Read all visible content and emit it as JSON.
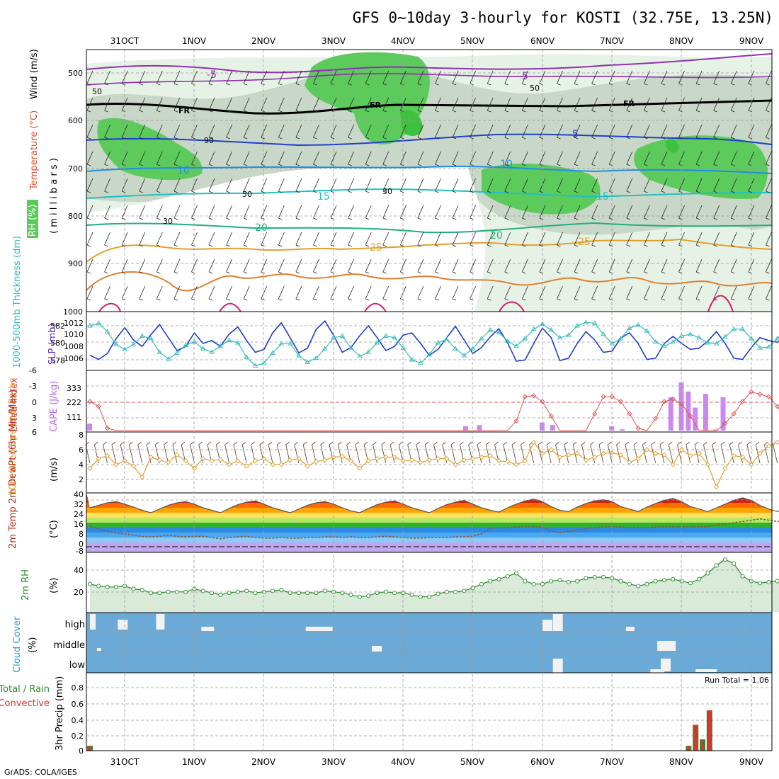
{
  "title": "GFS 0~10day 3-hourly for KOSTI (32.75E, 13.25N)",
  "credit": "GrADS: COLA/IGES",
  "dates": [
    "31OCT",
    "1NOV",
    "2NOV",
    "3NOV",
    "4NOV",
    "5NOV",
    "6NOV",
    "7NOV",
    "8NOV",
    "9NOV"
  ],
  "colors": {
    "rh_light": "#e6f2e6",
    "rh_mid": "#c8d7c8",
    "rh_green": "#5ccb5c",
    "cyan": "#33bbbb",
    "blue": "#1f3fcc",
    "red": "#e05050",
    "orange": "#e0a030",
    "purple": "#cc88ee",
    "cloud": "#6ba9d6"
  },
  "panels": {
    "upper": {
      "ylabel_parts": [
        "RH (%)",
        "Temperature (°C)",
        "Wind (m/s)"
      ],
      "ylabel2": "( m i l l i b a r s )",
      "yticks": [
        "500",
        "600",
        "700",
        "800",
        "900",
        "1000"
      ],
      "contour_labels": [
        "5",
        "-5",
        "FR",
        "FR",
        "FR",
        "-5",
        "5",
        "10",
        "10",
        "15",
        "15",
        "20",
        "20",
        "25",
        "25",
        "30",
        "30",
        "50",
        "50",
        "50",
        "90"
      ]
    },
    "slp": {
      "ylabel_left": "1000-500mb Thickness (dm)",
      "ylabel_right": "SLP (mb)",
      "left_ticks": [
        "582",
        "580",
        "578"
      ],
      "right_ticks": [
        "1012",
        "1010",
        "1008",
        "1006"
      ]
    },
    "cape": {
      "ylabel_left": "Lifted Index",
      "ylabel_right": "CAPE (J/kg)",
      "left_ticks": [
        "-6",
        "-3",
        "0",
        "3",
        "6"
      ],
      "right_ticks": [
        "333",
        "222",
        "111"
      ]
    },
    "wind10": {
      "ylabel": "10m Wind Speed & Barbs",
      "unit": "(m/s)",
      "ticks": [
        "8",
        "6",
        "4",
        "2"
      ]
    },
    "temp2m": {
      "ylabel": "2m Temp 2m DewPt (6hr Min/Max)",
      "unit": "(°C)",
      "ticks": [
        "40",
        "32",
        "24",
        "16",
        "8",
        "0",
        "-8"
      ]
    },
    "rh2m": {
      "ylabel": "2m RH",
      "unit": "(%)",
      "ticks": [
        "40",
        "20"
      ]
    },
    "cloud": {
      "ylabel": "Cloud Cover",
      "unit": "(%)",
      "levels": [
        "high",
        "middle",
        "low"
      ]
    },
    "precip": {
      "ylabel_left": "Total / Rain",
      "ylabel_left2": "Convective",
      "ylabel": "3hr Precip (mm)",
      "ticks": [
        "0.8",
        "0.6",
        "0.4",
        "0.2",
        "0"
      ],
      "run_total": "Run Total = 1.06"
    }
  },
  "chart_data": [
    {
      "type": "line",
      "name": "slp",
      "title": "",
      "x_unit": "days from 30OCT12Z (3-hourly)",
      "series": [
        {
          "name": "SLP (mb)",
          "values": [
            1007.0,
            1006.3,
            1007.3,
            1009.8,
            1011.7,
            1009.6,
            1008.5,
            1010.5,
            1012.2,
            1010.0,
            1007.8,
            1008.5,
            1010.8,
            1009.0,
            1009.5,
            1008.5,
            1010.6,
            1011.8,
            1009.5,
            1007.5,
            1008.0,
            1010.8,
            1012.5,
            1010.0,
            1007.4,
            1008.2,
            1011.4,
            1012.8,
            1010.4,
            1007.5,
            1008.3,
            1010.3,
            1012.0,
            1010.0,
            1007.8,
            1008.5,
            1010.4,
            1010.8,
            1009.0,
            1007.0,
            1008.0,
            1010.0,
            1011.9,
            1009.6,
            1007.3,
            1008.3,
            1010.1,
            1011.5,
            1009.1,
            1006.0,
            1006.2,
            1009.0,
            1011.6,
            1010.0,
            1006.1,
            1006.5,
            1009.0,
            1011.0,
            1009.6,
            1007.5,
            1007.7,
            1009.9,
            1010.8,
            1009.0,
            1006.3,
            1006.5,
            1009.0,
            1010.2,
            1009.0,
            1008.0,
            1008.2,
            1009.4,
            1011.0,
            1009.0,
            1006.5,
            1006.3,
            1008.3,
            1010.0,
            1009.5,
            1009.2,
            1010.2,
            1011.2
          ]
        },
        {
          "name": "Thickness (dm)",
          "values": [
            582.0,
            582.3,
            581.3,
            579.8,
            579.2,
            579.8,
            580.8,
            580.5,
            578.9,
            578.1,
            578.8,
            579.7,
            580.1,
            579.3,
            578.9,
            579.6,
            580.3,
            580.0,
            578.3,
            577.3,
            577.6,
            578.8,
            579.9,
            579.9,
            578.5,
            577.7,
            578.2,
            579.3,
            580.6,
            580.8,
            579.4,
            578.4,
            578.9,
            580.0,
            580.8,
            580.6,
            579.4,
            578.0,
            577.6,
            578.6,
            580.0,
            580.4,
            579.3,
            578.5,
            579.3,
            580.5,
            581.5,
            581.2,
            580.2,
            579.6,
            580.5,
            581.6,
            582.2,
            581.5,
            580.6,
            580.9,
            582.0,
            582.4,
            582.3,
            581.0,
            579.9,
            580.5,
            581.7,
            582.1,
            581.4,
            580.1,
            579.6,
            580.1,
            580.8,
            581.0,
            580.6,
            580.0,
            579.9,
            580.7,
            581.6,
            581.6,
            580.5,
            579.4,
            579.5,
            580.5,
            581.5,
            582.8
          ]
        }
      ]
    },
    {
      "type": "bar",
      "name": "cape",
      "ylabel": "CAPE (J/kg)",
      "x": [
        0.0,
        5.4,
        5.6,
        6.5,
        6.65,
        7.5,
        7.65,
        8.35,
        8.5,
        8.6,
        8.7,
        8.85,
        9.0,
        9.1
      ],
      "values": [
        60,
        38,
        48,
        70,
        48,
        38,
        12,
        290,
        420,
        340,
        200,
        320,
        10,
        290
      ]
    },
    {
      "type": "line",
      "name": "lifted_index",
      "ylabel": "Lifted Index",
      "ylim": [
        6,
        -6
      ],
      "values": [
        0.0,
        1.0,
        5.5,
        6.0,
        6.0,
        6.0,
        6.0,
        6.0,
        6.0,
        6.0,
        6.0,
        6.0,
        6.0,
        6.0,
        6.0,
        6.0,
        6.0,
        6.0,
        6.0,
        6.0,
        6.0,
        6.0,
        6.0,
        6.0,
        6.0,
        6.0,
        6.0,
        6.0,
        6.0,
        6.0,
        6.0,
        6.0,
        6.0,
        6.0,
        6.0,
        6.0,
        6.0,
        6.0,
        6.0,
        6.0,
        6.0,
        6.0,
        6.0,
        6.0,
        6.0,
        6.0,
        6.0,
        6.0,
        6.0,
        4.0,
        -1.0,
        -1.2,
        0.0,
        3.0,
        6.0,
        6.0,
        6.0,
        6.0,
        2.5,
        -1.0,
        -1.0,
        0.0,
        2.5,
        5.5,
        6.0,
        3.5,
        0.0,
        -0.5,
        0.5,
        3.0,
        6.0,
        6.0,
        6.0,
        4.5,
        2.5,
        0.0,
        -2.0,
        -1.5,
        -1.0,
        1.0,
        3.5,
        4.0
      ]
    },
    {
      "type": "line",
      "name": "wind10m",
      "ylabel": "(m/s)",
      "ylim": [
        0,
        8
      ],
      "values": [
        3.5,
        4.8,
        5.2,
        4.0,
        4.5,
        3.8,
        2.3,
        5.0,
        4.6,
        4.3,
        5.3,
        4.5,
        3.5,
        4.8,
        4.5,
        4.7,
        4.0,
        4.5,
        3.8,
        4.5,
        4.8,
        4.0,
        4.0,
        4.6,
        4.8,
        3.8,
        4.4,
        4.6,
        5.0,
        5.1,
        4.5,
        3.5,
        4.5,
        4.8,
        5.0,
        5.0,
        4.5,
        4.6,
        4.3,
        4.6,
        4.8,
        4.8,
        4.0,
        4.6,
        4.8,
        5.0,
        5.2,
        4.5,
        4.4,
        4.0,
        4.5,
        7.0,
        5.5,
        6.0,
        5.0,
        5.3,
        5.5,
        4.6,
        5.0,
        5.5,
        5.6,
        5.3,
        4.3,
        4.8,
        6.0,
        5.5,
        5.3,
        4.0,
        6.0,
        5.2,
        5.5,
        4.0,
        1.0,
        3.5,
        5.2,
        5.0,
        4.0,
        5.5,
        6.5,
        7.0,
        6.0,
        6.5
      ]
    },
    {
      "type": "line",
      "name": "temp2m",
      "ylabel": "(°C)",
      "ylim": [
        -8,
        40
      ],
      "series": [
        {
          "name": "2m Temp",
          "values": [
            28.0,
            30.0,
            32.0,
            33.0,
            31.0,
            28.5,
            26.0,
            24.0,
            27.0,
            30.0,
            32.0,
            33.0,
            31.0,
            28.0,
            26.0,
            24.0,
            27.5,
            30.5,
            32.5,
            33.5,
            31.0,
            28.0,
            26.0,
            24.0,
            27.0,
            30.0,
            32.0,
            33.0,
            31.0,
            28.0,
            25.5,
            24.0,
            27.5,
            30.5,
            32.5,
            33.5,
            31.0,
            28.0,
            26.0,
            24.0,
            27.5,
            30.5,
            32.5,
            34.0,
            31.0,
            28.0,
            26.0,
            24.5,
            28.0,
            31.0,
            33.5,
            35.0,
            33.0,
            29.0,
            26.0,
            25.0,
            28.5,
            31.5,
            33.5,
            34.5,
            33.0,
            29.0,
            27.0,
            25.0,
            28.5,
            31.5,
            34.0,
            35.5,
            33.0,
            29.0,
            27.0,
            25.0,
            28.0,
            31.0,
            34.0,
            36.0,
            34.0,
            30.0,
            27.0,
            25.0,
            28.0,
            29.0
          ]
        },
        {
          "name": "2m DewPt",
          "values": [
            13.0,
            11.0,
            9.0,
            7.5,
            7.0,
            6.0,
            5.0,
            4.5,
            5.0,
            6.0,
            5.0,
            4.5,
            5.0,
            5.0,
            4.0,
            3.0,
            4.0,
            4.5,
            5.0,
            4.0,
            3.5,
            3.5,
            4.0,
            3.5,
            3.5,
            4.0,
            4.0,
            4.5,
            4.5,
            4.0,
            4.5,
            4.0,
            4.0,
            4.5,
            5.0,
            4.5,
            4.0,
            3.5,
            3.5,
            4.0,
            4.0,
            4.0,
            4.5,
            4.5,
            5.0,
            7.0,
            11.5,
            12.0,
            12.0,
            12.5,
            12.5,
            12.5,
            12.5,
            9.0,
            8.0,
            9.0,
            10.0,
            11.0,
            12.0,
            12.5,
            12.5,
            12.5,
            12.0,
            12.0,
            12.0,
            12.5,
            12.5,
            12.5,
            12.5,
            12.5,
            12.5,
            13.0,
            14.0,
            15.0,
            16.0,
            17.0,
            18.0,
            19.0,
            18.0,
            17.0,
            17.0,
            16.5
          ]
        }
      ]
    },
    {
      "type": "area",
      "name": "rh2m",
      "ylabel": "(%)",
      "ylim": [
        0,
        55
      ],
      "values": [
        27,
        25,
        24,
        24,
        25,
        22,
        21,
        18,
        18,
        19,
        19,
        19,
        22,
        20,
        18,
        16,
        18,
        19,
        20,
        18,
        19,
        20,
        21,
        18,
        18,
        18,
        18,
        20,
        19,
        18,
        16,
        14,
        15,
        18,
        19,
        18,
        18,
        16,
        14,
        14,
        17,
        19,
        19,
        20,
        23,
        27,
        30,
        32,
        35,
        38,
        30,
        27,
        27,
        30,
        31,
        29,
        30,
        33,
        34,
        34,
        33,
        30,
        27,
        25,
        27,
        30,
        31,
        32,
        30,
        28,
        32,
        38,
        46,
        52,
        48,
        35,
        30,
        28,
        29,
        30,
        31,
        32
      ]
    },
    {
      "type": "bar",
      "name": "precip",
      "ylabel": "3hr Precip (mm)",
      "ylim": [
        0,
        1.0
      ],
      "x": [
        0.0,
        8.6,
        8.7,
        8.8,
        8.9
      ],
      "values": [
        0.06,
        0.06,
        0.32,
        0.14,
        0.5
      ],
      "series_names": [
        "Total / Rain",
        "Convective"
      ]
    }
  ]
}
